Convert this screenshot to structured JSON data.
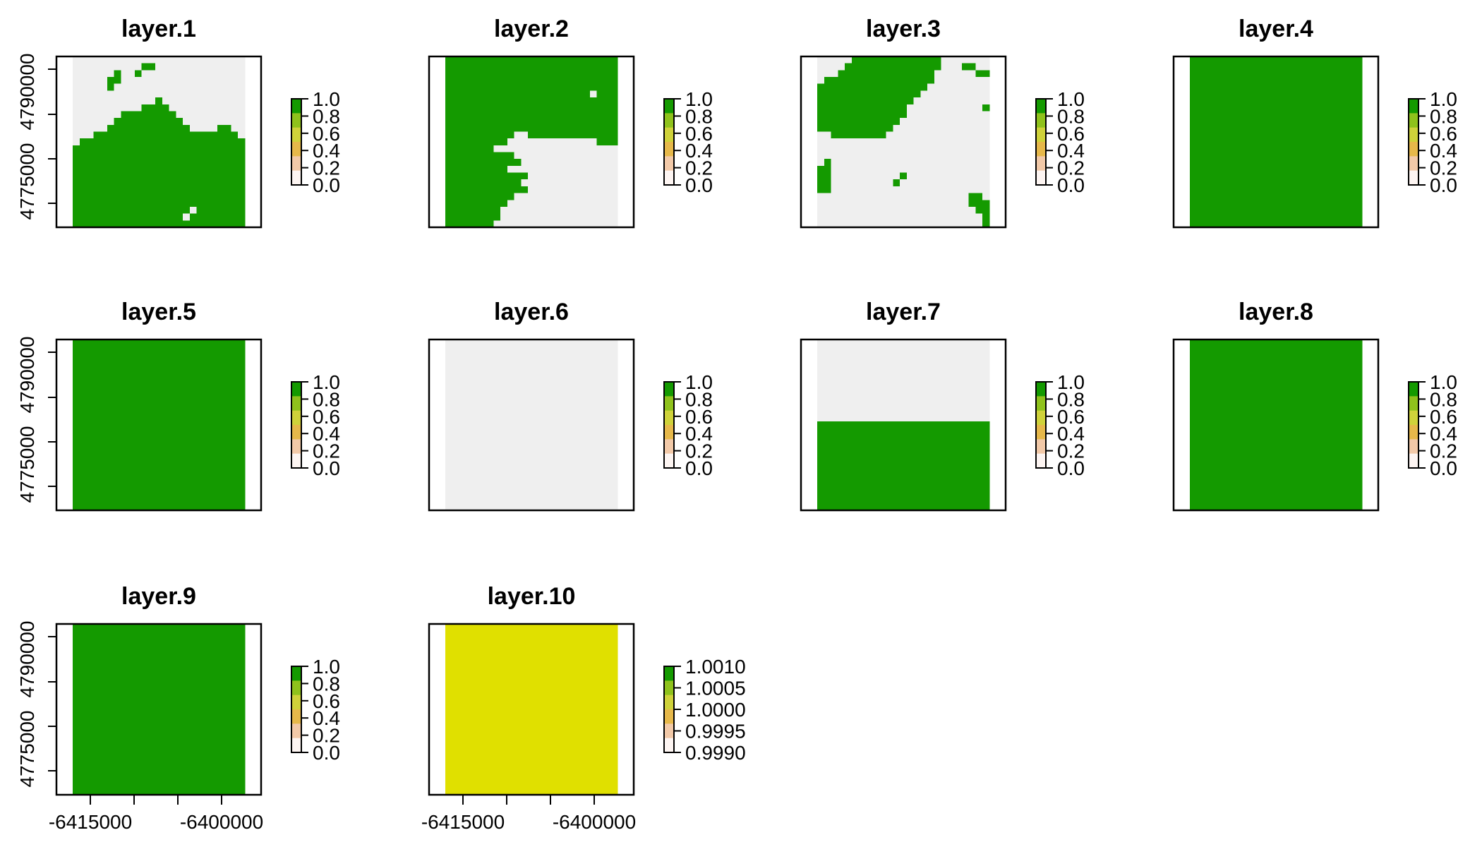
{
  "chart_data": {
    "type": "heatmap",
    "colors": {
      "green": "#149a00",
      "grey": "#efefef",
      "yellow": "#e0e000",
      "axis": "#000000",
      "background": "#ffffff"
    },
    "x_ticks": [
      "-6415000",
      "-6400000"
    ],
    "y_ticks": [
      "4790000",
      "4775000"
    ],
    "legend_ticks_binary": [
      "1.0",
      "0.8",
      "0.6",
      "0.4",
      "0.2",
      "0.0"
    ],
    "legend_ticks_constant": [
      "1.0010",
      "1.0005",
      "1.0000",
      "0.9995",
      "0.9990"
    ],
    "legend_gradient": [
      "#fdf5f2",
      "#f2c9a8",
      "#e6b84a",
      "#cfd23a",
      "#8fc21c",
      "#149a00"
    ],
    "panels": [
      {
        "title": "layer.1",
        "grid": [
          "0000000000000000000000000",
          "0000000000110000000000000",
          "0000001001000000000000000",
          "0000011000000000000000000",
          "0000010000000000000000000",
          "0000000000000000000000000",
          "0000000000001000000000000",
          "0000000000111100000000000",
          "0000000111111110000000000",
          "0000001111111111000000000",
          "0000011111111111100001100",
          "0001111111111111111111110",
          "0111111111111111111111111",
          "1111111111111111111111111",
          "1111111111111111111111111",
          "1111111111111111111111111",
          "1111111111111111111111111",
          "1111111111111111111111111",
          "1111111111111111111111111",
          "1111111111111111111111111",
          "1111111111111111111111111",
          "1111111111111111111111111",
          "1111111111111111101111111",
          "1111111111111111011111111",
          "1111111111111111111111111"
        ]
      },
      {
        "title": "layer.2",
        "grid": [
          "1111111111111111111111111",
          "1111111111111111111111111",
          "1111111111111111111111111",
          "1111111111111111111111111",
          "1111111111111111111111111",
          "1111111111111111111110111",
          "1111111111111111111111111",
          "1111111111111111111111111",
          "1111111111111111111111111",
          "1111111111111111111111111",
          "1111111111111111111111111",
          "1111111111001111111111111",
          "1111111110000000000000111",
          "1111111000000000000000000",
          "1111111111000000000000000",
          "1111111111100000000000000",
          "1111111110000000000000000",
          "1111111111110000000000000",
          "1111111111100000000000000",
          "1111111111110000000000000",
          "1111111111000000000000000",
          "1111111110000000000000000",
          "1111111100000000000000000",
          "1111111100000000000000000",
          "1111111000000000000000000"
        ]
      },
      {
        "title": "layer.3",
        "grid": [
          "0000011111111111110000000",
          "0000111111111111110001100",
          "0001111111111111100000011",
          "0111111111111111100000000",
          "1111111111111111000000000",
          "1111111111111110000000000",
          "1111111111111100000000000",
          "1111111111111000000000001",
          "1111111111111000000000000",
          "1111111111110000000000000",
          "1111111111100000000000000",
          "0011111111000000000000000",
          "0000000000000000000000000",
          "0000000000000000000000000",
          "0000000000000000000000000",
          "0100000000000000000000000",
          "1100000000000000000000000",
          "1100000000001000000000000",
          "1100000000010000000000000",
          "1100000000000000000000000",
          "0000000000000000000000110",
          "0000000000000000000000111",
          "0000000000000000000000011",
          "0000000000000000000000001",
          "0000000000000000000000001"
        ]
      },
      {
        "title": "layer.4",
        "grid": [
          "1111111111111111111111111",
          "1111111111111111111111111",
          "1111111111111111111111111",
          "1111111111111111111111111",
          "1111111111111111111111111",
          "1111111111111111111111111",
          "1111111111111111111111111",
          "1111111111111111111111111",
          "1111111111111111111111111",
          "1111111111111111111111111",
          "1111111111111111111111111",
          "1111111111111111111111111",
          "1111111111111111111111111",
          "1111111111111111111111111",
          "1111111111111111111111111",
          "1111111111111111111111111",
          "1111111111111111111111111",
          "1111111111111111111111111",
          "1111111111111111111111111",
          "1111111111111111111111111",
          "1111111111111111111111111",
          "1111111111111111111111111",
          "1111111111111111111111111",
          "1111111111111111111111111",
          "1111111111111111111111111"
        ]
      },
      {
        "title": "layer.5",
        "grid": [
          "1111111111111111111111111",
          "1111111111111111111111111",
          "1111111111111111111111111",
          "1111111111111111111111111",
          "1111111111111111111111111",
          "1111111111111111111111111",
          "1111111111111111111111111",
          "1111111111111111111111111",
          "1111111111111111111111111",
          "1111111111111111111111111",
          "1111111111111111111111111",
          "1111111111111111111111111",
          "1111111111111111111111111",
          "1111111111111111111111111",
          "1111111111111111111111111",
          "1111111111111111111111111",
          "1111111111111111111111111",
          "1111111111111111111111111",
          "1111111111111111111111111",
          "1111111111111111111111111",
          "1111111111111111111111111",
          "1111111111111111111111111",
          "1111111111111111111111111",
          "1111111111111111111111111",
          "1111111111111111111111111"
        ]
      },
      {
        "title": "layer.6",
        "grid": [
          "0000000000000000000000000",
          "0000000000000000000000000",
          "0000000000000000000000000",
          "0000000000000000000000000",
          "0000000000000000000000000",
          "0000000000000000000000000",
          "0000000000000000000000000",
          "0000000000000000000000000",
          "0000000000000000000000000",
          "0000000000000000000000000",
          "0000000000000000000000000",
          "0000000000000000000000000",
          "0000000000000000000000000",
          "0000000000000000000000000",
          "0000000000000000000000000",
          "0000000000000000000000000",
          "0000000000000000000000000",
          "0000000000000000000000000",
          "0000000000000000000000000",
          "0000000000000000000000000",
          "0000000000000000000000000",
          "0000000000000000000000000",
          "0000000000000000000000000",
          "0000000000000000000000000",
          "0000000000000000000000000"
        ]
      },
      {
        "title": "layer.7",
        "grid": [
          "0000000000000000000000000",
          "0000000000000000000000000",
          "0000000000000000000000000",
          "0000000000000000000000000",
          "0000000000000000000000000",
          "0000000000000000000000000",
          "0000000000000000000000000",
          "0000000000000000000000000",
          "0000000000000000000000000",
          "0000000000000000000000000",
          "0000000000000000000000000",
          "0000000000000000000000000",
          "1111111111111111111111111",
          "1111111111111111111111111",
          "1111111111111111111111111",
          "1111111111111111111111111",
          "1111111111111111111111111",
          "1111111111111111111111111",
          "1111111111111111111111111",
          "1111111111111111111111111",
          "1111111111111111111111111",
          "1111111111111111111111111",
          "1111111111111111111111111",
          "1111111111111111111111111",
          "1111111111111111111111111"
        ]
      },
      {
        "title": "layer.8",
        "grid": [
          "1111111111111111111111111",
          "1111111111111111111111111",
          "1111111111111111111111111",
          "1111111111111111111111111",
          "1111111111111111111111111",
          "1111111111111111111111111",
          "1111111111111111111111111",
          "1111111111111111111111111",
          "1111111111111111111111111",
          "1111111111111111111111111",
          "1111111111111111111111111",
          "1111111111111111111111111",
          "1111111111111111111111111",
          "1111111111111111111111111",
          "1111111111111111111111111",
          "1111111111111111111111111",
          "1111111111111111111111111",
          "1111111111111111111111111",
          "1111111111111111111111111",
          "1111111111111111111111111",
          "1111111111111111111111111",
          "1111111111111111111111111",
          "1111111111111111111111111",
          "1111111111111111111111111",
          "1111111111111111111111111"
        ]
      },
      {
        "title": "layer.9",
        "grid": [
          "1111111111111111111111111",
          "1111111111111111111111111",
          "1111111111111111111111111",
          "1111111111111111111111111",
          "1111111111111111111111111",
          "1111111111111111111111111",
          "1111111111111111111111111",
          "1111111111111111111111111",
          "1111111111111111111111111",
          "1111111111111111111111111",
          "1111111111111111111111111",
          "1111111111111111111111111",
          "1111111111111111111111111",
          "1111111111111111111111111",
          "1111111111111111111111111",
          "1111111111111111111111111",
          "1111111111111111111111111",
          "1111111111111111111111111",
          "1111111111111111111111111",
          "1111111111111111111111111",
          "1111111111111111111111111",
          "1111111111111111111111111",
          "1111111111111111111111111",
          "1111111111111111111111111",
          "1111111111111111111111111"
        ]
      },
      {
        "title": "layer.10",
        "grid": [
          "2222222222222222222222222",
          "2222222222222222222222222",
          "2222222222222222222222222",
          "2222222222222222222222222",
          "2222222222222222222222222",
          "2222222222222222222222222",
          "2222222222222222222222222",
          "2222222222222222222222222",
          "2222222222222222222222222",
          "2222222222222222222222222",
          "2222222222222222222222222",
          "2222222222222222222222222",
          "2222222222222222222222222",
          "2222222222222222222222222",
          "2222222222222222222222222",
          "2222222222222222222222222",
          "2222222222222222222222222",
          "2222222222222222222222222",
          "2222222222222222222222222",
          "2222222222222222222222222",
          "2222222222222222222222222",
          "2222222222222222222222222",
          "2222222222222222222222222",
          "2222222222222222222222222",
          "2222222222222222222222222"
        ]
      }
    ]
  }
}
